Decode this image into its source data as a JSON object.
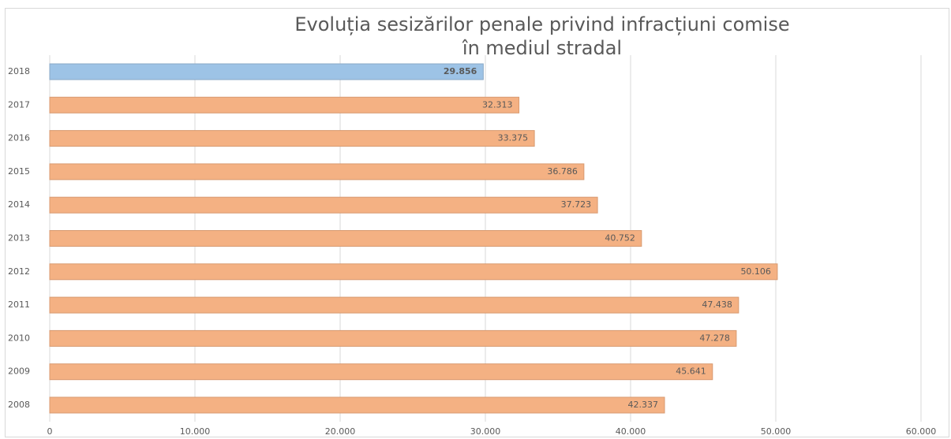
{
  "chart_data": {
    "type": "bar",
    "orientation": "horizontal",
    "title": [
      "Evoluția sesizărilor penale privind infracțiuni comise",
      "în mediul stradal"
    ],
    "categories": [
      "2018",
      "2017",
      "2016",
      "2015",
      "2014",
      "2013",
      "2012",
      "2011",
      "2010",
      "2009",
      "2008"
    ],
    "values": [
      29856,
      32313,
      33375,
      36786,
      37723,
      40752,
      50106,
      47438,
      47278,
      45641,
      42337
    ],
    "value_labels": [
      "29.856",
      "32.313",
      "33.375",
      "36.786",
      "37.723",
      "40.752",
      "50.106",
      "47.438",
      "47.278",
      "45.641",
      "42.337"
    ],
    "colors": [
      "#9dc3e6",
      "#f4b183",
      "#f4b183",
      "#f4b183",
      "#f4b183",
      "#f4b183",
      "#f4b183",
      "#f4b183",
      "#f4b183",
      "#f4b183",
      "#f4b183"
    ],
    "xlim": [
      0,
      60000
    ],
    "xticks": [
      0,
      {
        "value": 10000,
        "label": "10.000"
      },
      {
        "value": 20000,
        "label": "20.000"
      },
      {
        "value": 30000,
        "label": "30.000"
      },
      {
        "value": 40000,
        "label": "40.000"
      },
      {
        "value": 50000,
        "label": "50.000"
      },
      {
        "value": 60000,
        "label": "60.000"
      }
    ],
    "grid": true
  }
}
